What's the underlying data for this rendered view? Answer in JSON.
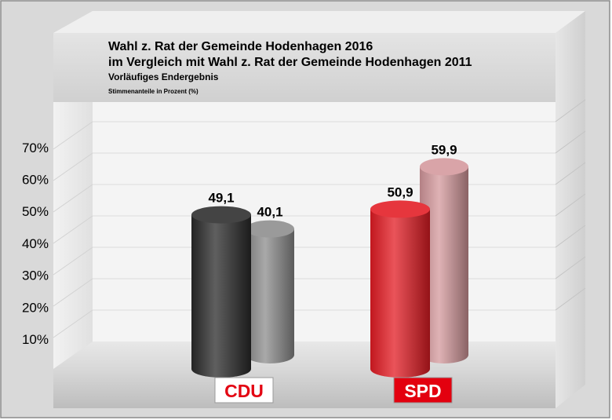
{
  "chart_data": {
    "type": "bar",
    "title": "Wahl z. Rat der Gemeinde Hodenhagen 2016",
    "subtitle": "im Vergleich mit Wahl z. Rat der Gemeinde Hodenhagen 2011",
    "note1": "Vorläufiges Endergebnis",
    "note2": "Stimmenanteile in Prozent (%)",
    "categories": [
      "CDU",
      "SPD"
    ],
    "series": [
      {
        "values": [
          49.1,
          50.9
        ],
        "labels": [
          "49,1",
          "50,9"
        ],
        "colors": [
          "#2a2a2a",
          "#e31b23"
        ]
      },
      {
        "values": [
          40.1,
          59.9
        ],
        "labels": [
          "40,1",
          "59,9"
        ],
        "colors": [
          "#8c8c8c",
          "#d4989c"
        ]
      }
    ],
    "yticks": [
      10,
      20,
      30,
      40,
      50,
      60,
      70
    ],
    "ytick_labels": [
      "10%",
      "20%",
      "30%",
      "40%",
      "50%",
      "60%",
      "70%"
    ],
    "ylim": [
      0,
      70
    ],
    "grid": true,
    "logos": {
      "CDU": {
        "text": "CDU",
        "text_color": "#e30613",
        "bg": "#ffffff"
      },
      "SPD": {
        "text": "SPD",
        "text_color": "#ffffff",
        "bg": "#e3000f"
      }
    }
  }
}
